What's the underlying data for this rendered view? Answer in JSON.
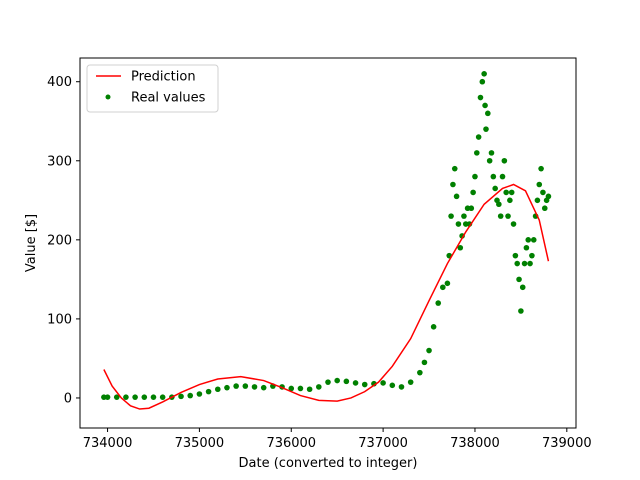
{
  "chart_data": {
    "type": "line",
    "xlabel": "Date (converted to integer)",
    "ylabel": "Value [$]",
    "xlim": [
      733700,
      739100
    ],
    "ylim": [
      -38,
      430
    ],
    "xticks": [
      734000,
      735000,
      736000,
      737000,
      738000,
      739000
    ],
    "yticks": [
      0,
      100,
      200,
      300,
      400
    ],
    "grid": false,
    "legend_position": "upper-left",
    "series": [
      {
        "name": "Prediction",
        "kind": "line",
        "color": "#ff0000",
        "x": [
          733960,
          734050,
          734150,
          734250,
          734350,
          734450,
          734600,
          734800,
          735000,
          735200,
          735450,
          735700,
          735900,
          736100,
          736300,
          736500,
          736650,
          736800,
          736950,
          737100,
          737300,
          737500,
          737700,
          737900,
          738100,
          738300,
          738420,
          738550,
          738700,
          738800
        ],
        "y": [
          36,
          15,
          0,
          -10,
          -14,
          -13,
          -5,
          7,
          17,
          24,
          27,
          22,
          13,
          3,
          -3,
          -4,
          0,
          8,
          20,
          40,
          75,
          123,
          170,
          210,
          245,
          265,
          270,
          262,
          225,
          173
        ]
      },
      {
        "name": "Real values",
        "kind": "scatter",
        "color": "#008000",
        "x": [
          733960,
          734000,
          734100,
          734200,
          734300,
          734400,
          734500,
          734600,
          734700,
          734800,
          734900,
          735000,
          735100,
          735200,
          735300,
          735400,
          735500,
          735600,
          735700,
          735800,
          735900,
          736000,
          736100,
          736200,
          736300,
          736400,
          736500,
          736600,
          736700,
          736800,
          736900,
          737000,
          737100,
          737200,
          737300,
          737400,
          737450,
          737500,
          737550,
          737600,
          737650,
          737700,
          737720,
          737740,
          737760,
          737780,
          737800,
          737820,
          737840,
          737860,
          737880,
          737900,
          737920,
          737940,
          737960,
          737980,
          738000,
          738020,
          738040,
          738060,
          738080,
          738100,
          738110,
          738120,
          738140,
          738160,
          738180,
          738200,
          738220,
          738240,
          738260,
          738280,
          738300,
          738320,
          738340,
          738360,
          738380,
          738400,
          738420,
          738440,
          738460,
          738480,
          738500,
          738520,
          738540,
          738560,
          738580,
          738600,
          738620,
          738640,
          738660,
          738680,
          738700,
          738720,
          738740,
          738760,
          738780,
          738800
        ],
        "y": [
          1,
          1,
          1,
          1,
          1,
          1,
          1,
          1,
          1,
          2,
          3,
          5,
          8,
          11,
          13,
          15,
          15,
          14,
          13,
          15,
          14,
          12,
          12,
          11,
          14,
          20,
          22,
          21,
          19,
          17,
          18,
          19,
          16,
          14,
          20,
          32,
          45,
          60,
          90,
          120,
          140,
          145,
          180,
          230,
          270,
          290,
          255,
          220,
          190,
          205,
          230,
          220,
          240,
          220,
          240,
          260,
          280,
          310,
          330,
          380,
          400,
          410,
          370,
          340,
          360,
          300,
          310,
          280,
          265,
          250,
          245,
          230,
          280,
          300,
          260,
          230,
          250,
          260,
          220,
          180,
          170,
          150,
          110,
          140,
          170,
          190,
          200,
          170,
          180,
          200,
          230,
          250,
          270,
          290,
          260,
          240,
          250,
          255
        ]
      }
    ]
  }
}
